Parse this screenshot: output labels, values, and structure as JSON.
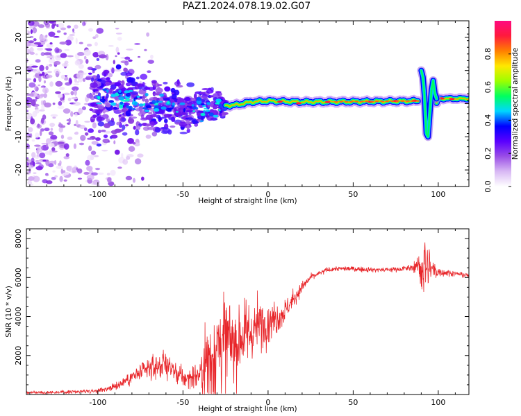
{
  "title": "PAZ1.2024.078.19.02.G07",
  "colors": {
    "snr_line": "#e8262a",
    "colormap": [
      "#ffffff",
      "#d8b8f4",
      "#9a4ee6",
      "#5a00ff",
      "#0000ff",
      "#00d7ff",
      "#00ff5f",
      "#9cff00",
      "#ffe800",
      "#ff7f00",
      "#ff1a3c",
      "#ff0a80"
    ]
  },
  "chart_data": [
    {
      "type": "heatmap",
      "name": "spectrogram",
      "xlabel": "Height of straight line (km)",
      "ylabel": "Frequency (Hz)",
      "xlim": [
        -142,
        118
      ],
      "ylim": [
        -25,
        25
      ],
      "x_ticks": [
        -100,
        -50,
        0,
        50,
        100
      ],
      "y_ticks": [
        -20,
        -10,
        0,
        10,
        20
      ],
      "colorbar": {
        "label": "Normalized spectral amplitude",
        "range": [
          0,
          1
        ],
        "ticks": [
          "0.0",
          "0.2",
          "0.4",
          "0.6",
          "0.8"
        ]
      },
      "ridge": {
        "description_points": [
          [
            -100,
            1.5
          ],
          [
            -80,
            1.0
          ],
          [
            -60,
            -1.0
          ],
          [
            -45,
            -1.5
          ],
          [
            -30,
            -0.5
          ],
          [
            -20,
            -0.5
          ],
          [
            -10,
            0.5
          ],
          [
            0,
            0.8
          ],
          [
            20,
            0.5
          ],
          [
            50,
            0.6
          ],
          [
            88,
            0.8
          ],
          [
            92,
            8
          ],
          [
            95,
            -6
          ],
          [
            100,
            1.5
          ],
          [
            118,
            1.5
          ]
        ]
      }
    },
    {
      "type": "line",
      "name": "snr",
      "xlabel": "Height of straight line (km)",
      "ylabel": "SNR (10 * v/v)",
      "xlim": [
        -142,
        118
      ],
      "ylim": [
        0,
        8500
      ],
      "x_ticks": [
        -100,
        -50,
        0,
        50,
        100
      ],
      "y_ticks": [
        2000,
        4000,
        6000,
        8000
      ],
      "envelope": {
        "x": [
          -142,
          -120,
          -100,
          -90,
          -80,
          -70,
          -60,
          -50,
          -40,
          -35,
          -30,
          -25,
          -20,
          -15,
          -10,
          -5,
          0,
          5,
          10,
          15,
          20,
          25,
          30,
          35,
          40,
          50,
          60,
          70,
          80,
          85,
          88,
          90,
          92,
          94,
          96,
          100,
          110,
          118
        ],
        "mean": [
          100,
          120,
          200,
          400,
          900,
          1300,
          1600,
          800,
          1000,
          1800,
          2500,
          2800,
          2600,
          3000,
          3200,
          3600,
          3800,
          3900,
          4300,
          4900,
          5500,
          6000,
          6200,
          6400,
          6450,
          6450,
          6400,
          6400,
          6450,
          6500,
          6600,
          6500,
          6600,
          6500,
          6400,
          6300,
          6200,
          6100
        ],
        "noise": [
          60,
          60,
          80,
          150,
          300,
          450,
          550,
          400,
          500,
          2200,
          2000,
          1800,
          1500,
          1400,
          1200,
          1100,
          900,
          700,
          450,
          350,
          250,
          150,
          120,
          110,
          100,
          100,
          100,
          100,
          120,
          150,
          300,
          1200,
          1500,
          1200,
          600,
          200,
          100,
          100
        ]
      },
      "series": [
        {
          "color": "#e8262a"
        }
      ]
    }
  ]
}
